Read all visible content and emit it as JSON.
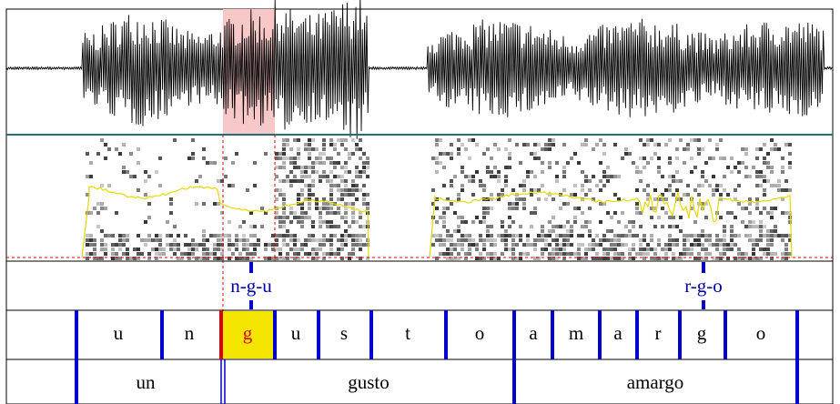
{
  "point_tier": [
    "n-g-u",
    "r-g-o"
  ],
  "phones": [
    "u",
    "n",
    "g",
    "u",
    "s",
    "t",
    "o",
    "a",
    "m",
    "a",
    "r",
    "g",
    "o"
  ],
  "words": [
    "un",
    "gusto",
    "amargo"
  ]
}
